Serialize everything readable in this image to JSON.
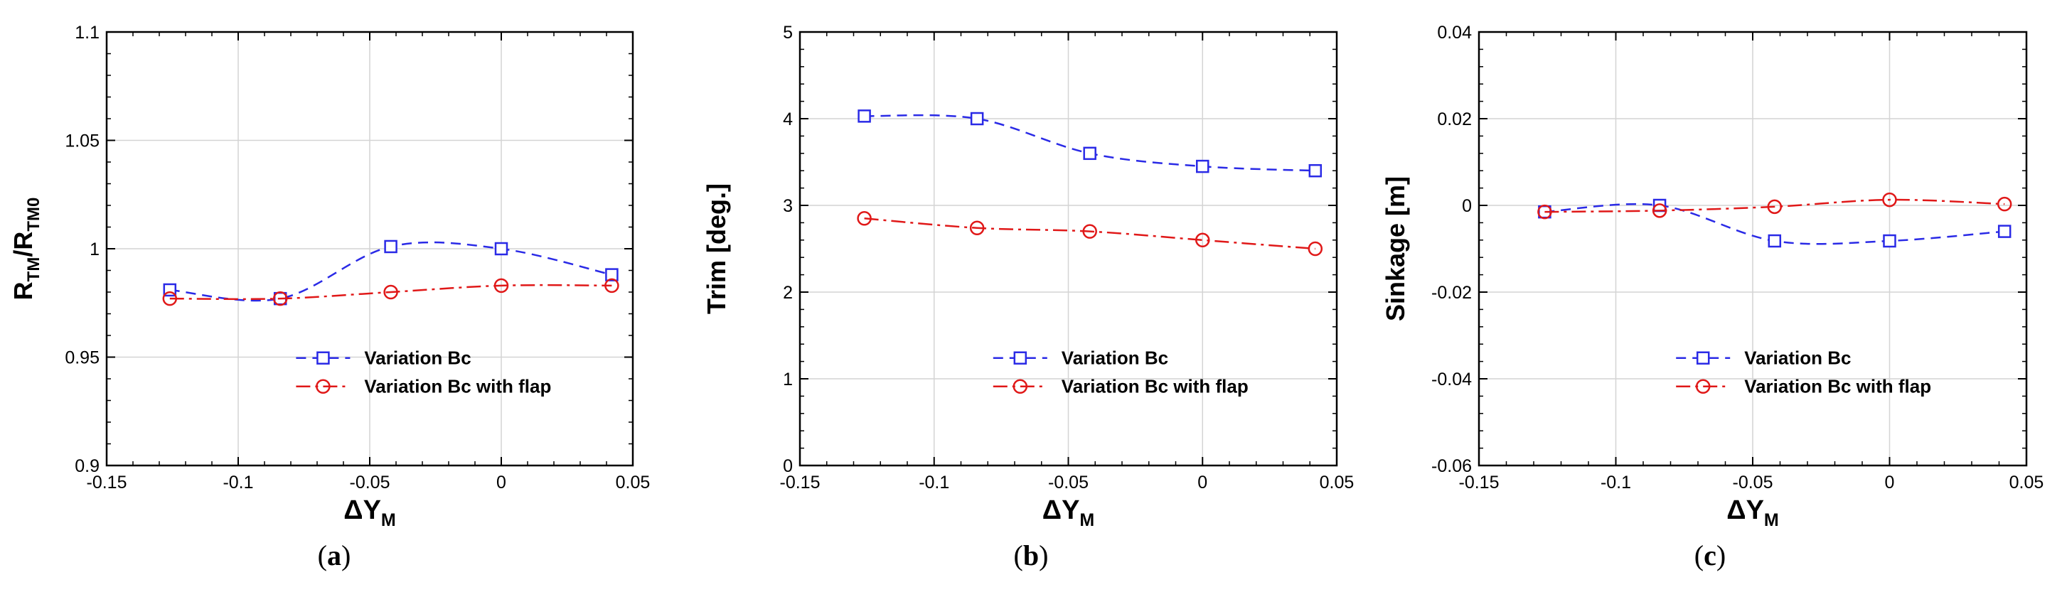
{
  "colors": {
    "blue": "#2a2ae6",
    "red": "#e01818",
    "grid": "#d4d4d4",
    "axis": "#000000"
  },
  "chart_data": [
    {
      "id": "a",
      "type": "line",
      "caption": "a",
      "xlabel": "ΔY",
      "xlabel_sub": "M",
      "ylabel": "R",
      "ylabel_sub1": "TM",
      "ylabel_mid": "/R",
      "ylabel_sub2": "TM0",
      "xlim": [
        -0.15,
        0.05
      ],
      "ylim": [
        0.9,
        1.1
      ],
      "xticks": [
        -0.15,
        -0.1,
        -0.05,
        0,
        0.05
      ],
      "xtick_labels": [
        "-0.15",
        "-0.1",
        "-0.05",
        "0",
        "0.05"
      ],
      "yticks": [
        0.9,
        0.95,
        1.0,
        1.05,
        1.1
      ],
      "ytick_labels": [
        "0.9",
        "0.95",
        "1",
        "1.05",
        "1.1"
      ],
      "legend_position": "lower-right",
      "series": [
        {
          "name": "Variation Bc",
          "style": "blue-dashed-square",
          "x": [
            -0.126,
            -0.084,
            -0.042,
            0,
            0.042
          ],
          "y": [
            0.981,
            0.977,
            1.001,
            1.0,
            0.988
          ]
        },
        {
          "name": "Variation Bc with flap",
          "style": "red-dashdot-circle",
          "x": [
            -0.126,
            -0.084,
            -0.042,
            0,
            0.042
          ],
          "y": [
            0.977,
            0.977,
            0.98,
            0.983,
            0.983
          ]
        }
      ]
    },
    {
      "id": "b",
      "type": "line",
      "caption": "b",
      "xlabel": "ΔY",
      "xlabel_sub": "M",
      "ylabel": "Trim [deg.]",
      "xlim": [
        -0.15,
        0.05
      ],
      "ylim": [
        0,
        5
      ],
      "xticks": [
        -0.15,
        -0.1,
        -0.05,
        0,
        0.05
      ],
      "xtick_labels": [
        "-0.15",
        "-0.1",
        "-0.05",
        "0",
        "0.05"
      ],
      "yticks": [
        0,
        1,
        2,
        3,
        4,
        5
      ],
      "ytick_labels": [
        "0",
        "1",
        "2",
        "3",
        "4",
        "5"
      ],
      "legend_position": "lower-right",
      "series": [
        {
          "name": "Variation Bc",
          "style": "blue-dashed-square",
          "x": [
            -0.126,
            -0.084,
            -0.042,
            0,
            0.042
          ],
          "y": [
            4.03,
            4.0,
            3.6,
            3.45,
            3.4
          ]
        },
        {
          "name": "Variation Bc with flap",
          "style": "red-dashdot-circle",
          "x": [
            -0.126,
            -0.084,
            -0.042,
            0,
            0.042
          ],
          "y": [
            2.85,
            2.74,
            2.7,
            2.6,
            2.5
          ]
        }
      ]
    },
    {
      "id": "c",
      "type": "line",
      "caption": "c",
      "xlabel": "ΔY",
      "xlabel_sub": "M",
      "ylabel": "Sinkage [m]",
      "xlim": [
        -0.15,
        0.05
      ],
      "ylim": [
        -0.06,
        0.04
      ],
      "xticks": [
        -0.15,
        -0.1,
        -0.05,
        0,
        0.05
      ],
      "xtick_labels": [
        "-0.15",
        "-0.1",
        "-0.05",
        "0",
        "0.05"
      ],
      "yticks": [
        -0.06,
        -0.04,
        -0.02,
        0,
        0.02,
        0.04
      ],
      "ytick_labels": [
        "-0.06",
        "-0.04",
        "-0.02",
        "0",
        "0.02",
        "0.04"
      ],
      "legend_position": "lower-right",
      "series": [
        {
          "name": "Variation Bc",
          "style": "blue-dashed-square",
          "x": [
            -0.126,
            -0.084,
            -0.042,
            0,
            0.042
          ],
          "y": [
            -0.0015,
            0.0,
            -0.0082,
            -0.0082,
            -0.006
          ]
        },
        {
          "name": "Variation Bc with flap",
          "style": "red-dashdot-circle",
          "x": [
            -0.126,
            -0.084,
            -0.042,
            0,
            0.042
          ],
          "y": [
            -0.0015,
            -0.0012,
            -0.0003,
            0.0013,
            0.0003
          ]
        }
      ]
    }
  ]
}
